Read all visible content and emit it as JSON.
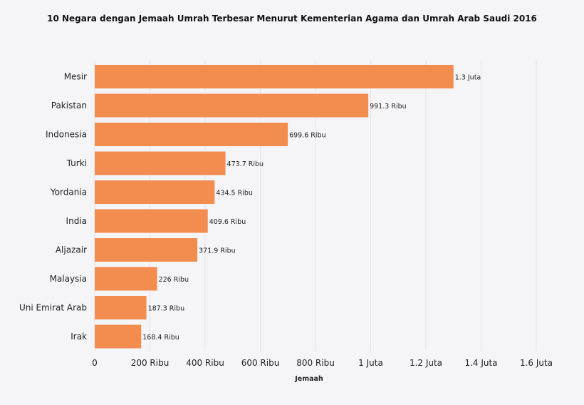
{
  "chart_data": {
    "type": "bar",
    "orientation": "horizontal",
    "title": "10 Negara dengan Jemaah Umrah Terbesar Menurut Kementerian Agama dan Umrah Arab Saudi 2016",
    "xlabel": "Jemaah",
    "ylabel": "",
    "categories": [
      "Mesir",
      "Pakistan",
      "Indonesia",
      "Turki",
      "Yordania",
      "India",
      "Aljazair",
      "Malaysia",
      "Uni Emirat Arab",
      "Irak"
    ],
    "values": [
      1300000,
      991300,
      699600,
      473700,
      434500,
      409600,
      371900,
      226000,
      187300,
      168400
    ],
    "data_labels": [
      "1.3 Juta",
      "991.3 Ribu",
      "699.6 Ribu",
      "473.7 Ribu",
      "434.5 Ribu",
      "409.6 Ribu",
      "371.9 Ribu",
      "226 Ribu",
      "187.3 Ribu",
      "168.4 Ribu"
    ],
    "xlim": [
      0,
      1600000
    ],
    "x_ticks": [
      0,
      200000,
      400000,
      600000,
      800000,
      1000000,
      1200000,
      1400000,
      1600000
    ],
    "x_tick_labels": [
      "0",
      "200 Ribu",
      "400 Ribu",
      "600 Ribu",
      "800 Ribu",
      "1 Juta",
      "1.2 Juta",
      "1.4 Juta",
      "1.6 Juta"
    ],
    "grid": true,
    "legend": "none",
    "colors": {
      "bar": "#f28c4f",
      "background": "#f5f4f7"
    }
  }
}
